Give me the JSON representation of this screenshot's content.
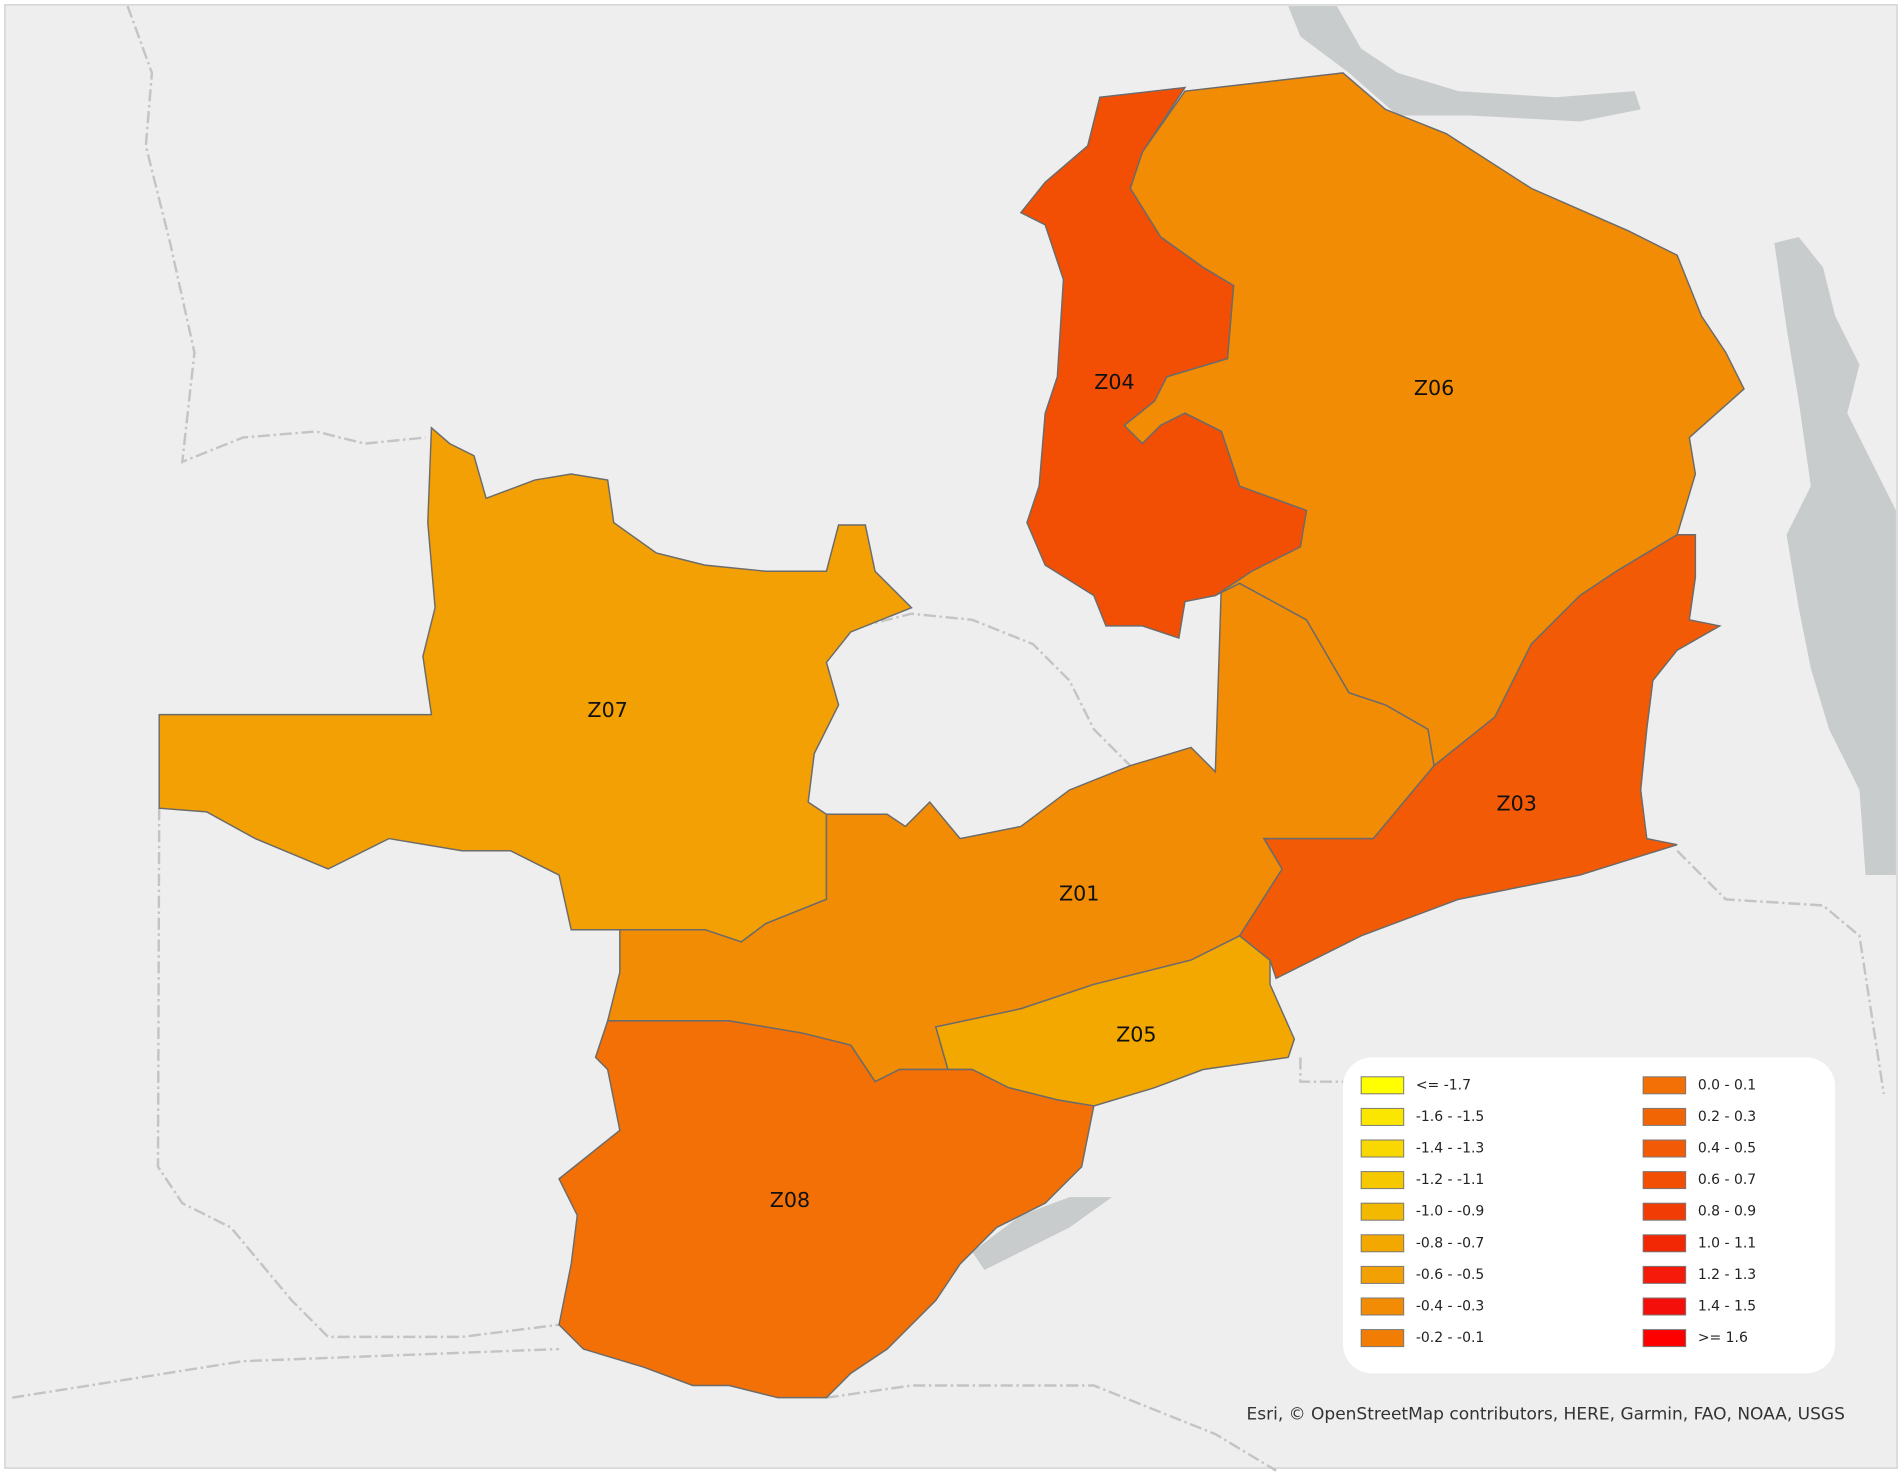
{
  "map": {
    "regions": [
      {
        "label": "Z07",
        "color": "#f3a005"
      },
      {
        "label": "Z01",
        "color": "#f28c05"
      },
      {
        "label": "Z05",
        "color": "#f3a800"
      },
      {
        "label": "Z08",
        "color": "#f27005"
      },
      {
        "label": "Z06",
        "color": "#f28c05"
      },
      {
        "label": "Z04",
        "color": "#f24f05"
      },
      {
        "label": "Z03",
        "color": "#f25a05"
      }
    ],
    "legend": {
      "items": [
        {
          "label": "<= -1.7",
          "color": "#ffff00"
        },
        {
          "label": "-1.6 - -1.5",
          "color": "#fae600"
        },
        {
          "label": "-1.4 - -1.3",
          "color": "#f8d800"
        },
        {
          "label": "-1.2 - -1.1",
          "color": "#f5c800"
        },
        {
          "label": "-1.0 - -0.9",
          "color": "#f3b800"
        },
        {
          "label": "-0.8 - -0.7",
          "color": "#f3a800"
        },
        {
          "label": "-0.6 - -0.5",
          "color": "#f3a005"
        },
        {
          "label": "-0.4 - -0.3",
          "color": "#f28c05"
        },
        {
          "label": "-0.2 - -0.1",
          "color": "#f27d05"
        },
        {
          "label": "0.0 - 0.1",
          "color": "#f27005"
        },
        {
          "label": "0.2 - 0.3",
          "color": "#f26505"
        },
        {
          "label": "0.4 - 0.5",
          "color": "#f25a05"
        },
        {
          "label": "0.6 - 0.7",
          "color": "#f24f05"
        },
        {
          "label": "0.8 - 0.9",
          "color": "#f23c05"
        },
        {
          "label": "1.0 - 1.1",
          "color": "#f22805"
        },
        {
          "label": "1.2 - 1.3",
          "color": "#f51a0a"
        },
        {
          "label": "1.4 - 1.5",
          "color": "#f50f0a"
        },
        {
          "label": ">= 1.6",
          "color": "#ff0000"
        }
      ]
    },
    "attribution": "Esri, © OpenStreetMap contributors, HERE, Garmin, FAO, NOAA, USGS"
  }
}
